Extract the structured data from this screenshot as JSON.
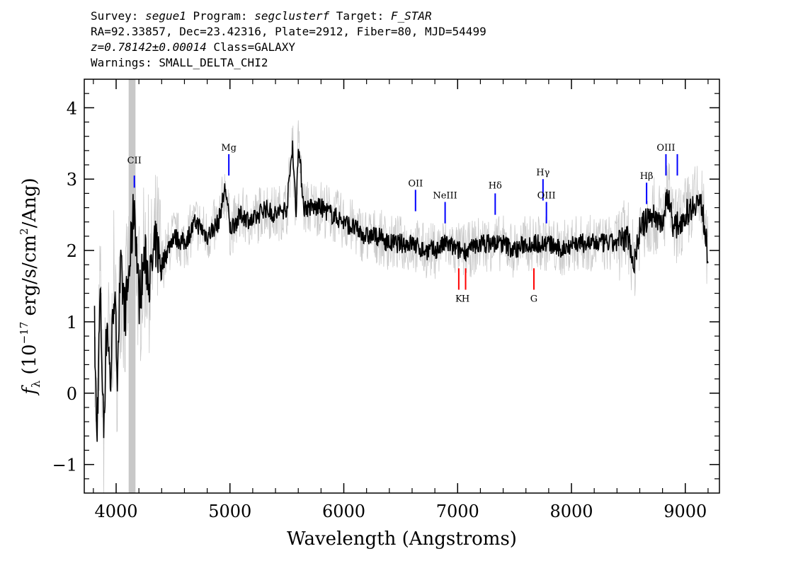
{
  "header": {
    "line1": {
      "survey_label": "Survey: ",
      "survey": "segue1",
      "program_label": " Program: ",
      "program": "segclusterf",
      "target_label": " Target: ",
      "target": "F_STAR"
    },
    "line2": "RA=92.33857, Dec=23.42316, Plate=2912, Fiber=80, MJD=54499",
    "line3": {
      "z": "z=0.78142±0.00014",
      "class": " Class=GALAXY"
    },
    "line4": "Warnings: SMALL_DELTA_CHI2"
  },
  "chart_data": {
    "type": "line",
    "xlabel": "Wavelength (Angstroms)",
    "ylabel_parts": {
      "f": "f",
      "sub": "λ",
      "pre": " (10",
      "sup": "−17",
      "mid": " erg/s/cm",
      "sup2": "2",
      "post": "/Ang)"
    },
    "xlim": [
      3720,
      9300
    ],
    "ylim": [
      -1.4,
      4.4
    ],
    "xticks": [
      4000,
      5000,
      6000,
      7000,
      8000,
      9000
    ],
    "yticks": [
      -1,
      0,
      1,
      2,
      3,
      4
    ],
    "grey_band": [
      4110,
      4170
    ],
    "colors": {
      "flux": "#000000",
      "noise": "#c8c8c8",
      "band": "#c8c8c8",
      "emission": "#0000ff",
      "absorption": "#ff0000"
    },
    "series": [
      {
        "values": [
          {
            "x": 3810,
            "y": 0.9
          },
          {
            "x": 3830,
            "y": -0.7
          },
          {
            "x": 3860,
            "y": 1.4
          },
          {
            "x": 3890,
            "y": -0.5
          },
          {
            "x": 3920,
            "y": 1.1
          },
          {
            "x": 3950,
            "y": 0.1
          },
          {
            "x": 3980,
            "y": 1.5
          },
          {
            "x": 4010,
            "y": 0.4
          },
          {
            "x": 4040,
            "y": 1.7
          },
          {
            "x": 4080,
            "y": 1.1
          },
          {
            "x": 4120,
            "y": 1.8
          },
          {
            "x": 4160,
            "y": 2.7
          },
          {
            "x": 4200,
            "y": 1.3
          },
          {
            "x": 4250,
            "y": 1.9
          },
          {
            "x": 4300,
            "y": 1.6
          },
          {
            "x": 4350,
            "y": 2.1
          },
          {
            "x": 4400,
            "y": 1.8
          },
          {
            "x": 4500,
            "y": 2.2
          },
          {
            "x": 4600,
            "y": 2.1
          },
          {
            "x": 4700,
            "y": 2.4
          },
          {
            "x": 4800,
            "y": 2.2
          },
          {
            "x": 4900,
            "y": 2.4
          },
          {
            "x": 4960,
            "y": 2.9
          },
          {
            "x": 5000,
            "y": 2.3
          },
          {
            "x": 5100,
            "y": 2.5
          },
          {
            "x": 5200,
            "y": 2.4
          },
          {
            "x": 5300,
            "y": 2.6
          },
          {
            "x": 5400,
            "y": 2.5
          },
          {
            "x": 5500,
            "y": 2.6
          },
          {
            "x": 5550,
            "y": 3.5
          },
          {
            "x": 5580,
            "y": 2.5
          },
          {
            "x": 5600,
            "y": 3.5
          },
          {
            "x": 5650,
            "y": 2.6
          },
          {
            "x": 5700,
            "y": 2.6
          },
          {
            "x": 5800,
            "y": 2.6
          },
          {
            "x": 5900,
            "y": 2.5
          },
          {
            "x": 6000,
            "y": 2.4
          },
          {
            "x": 6100,
            "y": 2.3
          },
          {
            "x": 6200,
            "y": 2.2
          },
          {
            "x": 6300,
            "y": 2.2
          },
          {
            "x": 6400,
            "y": 2.1
          },
          {
            "x": 6500,
            "y": 2.1
          },
          {
            "x": 6600,
            "y": 2.1
          },
          {
            "x": 6700,
            "y": 2.0
          },
          {
            "x": 6800,
            "y": 2.0
          },
          {
            "x": 6900,
            "y": 2.1
          },
          {
            "x": 7000,
            "y": 2.0
          },
          {
            "x": 7100,
            "y": 2.0
          },
          {
            "x": 7200,
            "y": 2.1
          },
          {
            "x": 7300,
            "y": 2.1
          },
          {
            "x": 7400,
            "y": 2.1
          },
          {
            "x": 7500,
            "y": 2.0
          },
          {
            "x": 7600,
            "y": 2.1
          },
          {
            "x": 7700,
            "y": 2.1
          },
          {
            "x": 7800,
            "y": 2.1
          },
          {
            "x": 7900,
            "y": 2.0
          },
          {
            "x": 8000,
            "y": 2.1
          },
          {
            "x": 8100,
            "y": 2.1
          },
          {
            "x": 8200,
            "y": 2.1
          },
          {
            "x": 8300,
            "y": 2.1
          },
          {
            "x": 8400,
            "y": 2.1
          },
          {
            "x": 8500,
            "y": 2.2
          },
          {
            "x": 8550,
            "y": 1.8
          },
          {
            "x": 8600,
            "y": 2.3
          },
          {
            "x": 8700,
            "y": 2.5
          },
          {
            "x": 8800,
            "y": 2.4
          },
          {
            "x": 8850,
            "y": 2.8
          },
          {
            "x": 8900,
            "y": 2.3
          },
          {
            "x": 9000,
            "y": 2.5
          },
          {
            "x": 9100,
            "y": 2.7
          },
          {
            "x": 9150,
            "y": 2.6
          },
          {
            "x": 9200,
            "y": 1.9
          }
        ]
      }
    ],
    "emission_lines": [
      {
        "label": "CII",
        "x": 4160,
        "y0": 2.88,
        "y1": 3.05,
        "label_y": 3.22
      },
      {
        "label": "Mg",
        "x": 4990,
        "y0": 3.05,
        "y1": 3.35,
        "label_y": 3.4
      },
      {
        "label": "OII",
        "x": 6630,
        "y0": 2.55,
        "y1": 2.85,
        "label_y": 2.9
      },
      {
        "label": "NeIII",
        "x": 6890,
        "y0": 2.38,
        "y1": 2.68,
        "label_y": 2.73
      },
      {
        "label": "Hδ",
        "x": 7330,
        "y0": 2.5,
        "y1": 2.8,
        "label_y": 2.87
      },
      {
        "label": "Hγ",
        "x": 7750,
        "y0": 2.7,
        "y1": 3.0,
        "label_y": 3.05
      },
      {
        "label": "OIII",
        "x": 7780,
        "y0": 2.38,
        "y1": 2.68,
        "label_y": 2.73
      },
      {
        "label": "Hβ",
        "x": 8660,
        "y0": 2.65,
        "y1": 2.95,
        "label_y": 3.0
      },
      {
        "label": "OIII",
        "x": 8830,
        "y0": 3.05,
        "y1": 3.35,
        "label_y": 3.4
      },
      {
        "label": "",
        "x": 8930,
        "y0": 3.05,
        "y1": 3.35,
        "label_y": 0
      }
    ],
    "absorption_lines": [
      {
        "label": "K",
        "x": 7010,
        "y0": 1.45,
        "y1": 1.75,
        "label_y": 1.28
      },
      {
        "label": "H",
        "x": 7070,
        "y0": 1.45,
        "y1": 1.75,
        "label_y": 1.28
      },
      {
        "label": "G",
        "x": 7670,
        "y0": 1.45,
        "y1": 1.75,
        "label_y": 1.28
      }
    ]
  }
}
